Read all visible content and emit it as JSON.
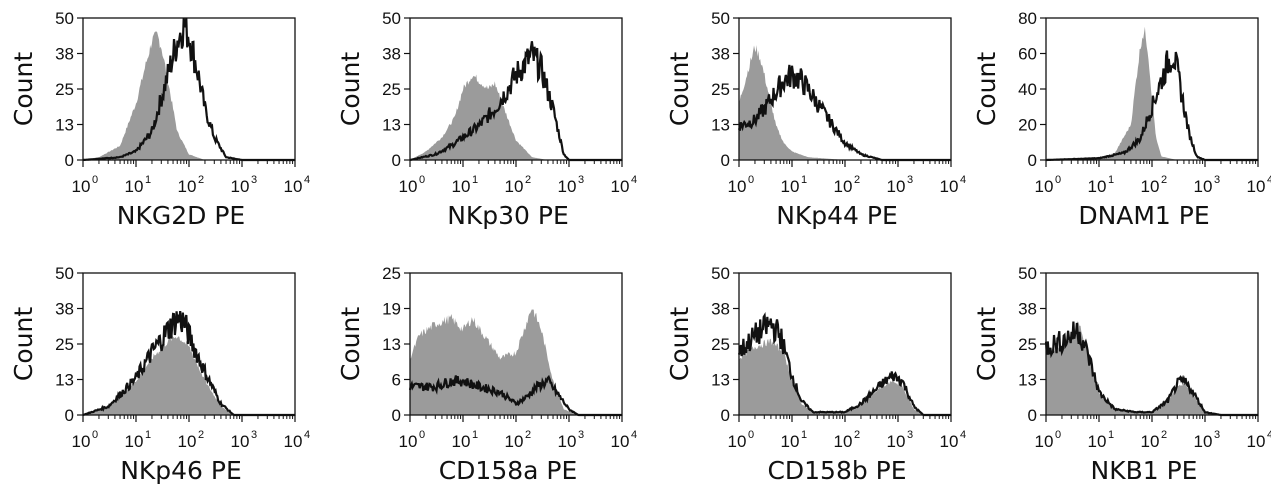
{
  "chart_data": [
    {
      "type": "area",
      "xlabel": "NKG2D PE",
      "ylabel": "Count",
      "xscale": "log",
      "xlim": [
        1,
        10000
      ],
      "xticks": [
        "0",
        "1",
        "2",
        "3",
        "4"
      ],
      "ylim": [
        0,
        50
      ],
      "yticks": [
        "0",
        "13",
        "25",
        "38",
        "50"
      ],
      "series": [
        {
          "style": "filled-gray",
          "x": [
            1,
            2,
            5,
            10,
            15,
            20,
            25,
            30,
            40,
            60,
            100,
            200,
            1000
          ],
          "y": [
            0,
            1,
            5,
            20,
            33,
            42,
            44,
            40,
            28,
            10,
            2,
            0,
            0
          ]
        },
        {
          "style": "black-line",
          "x": [
            1,
            5,
            10,
            20,
            40,
            60,
            80,
            100,
            150,
            200,
            300,
            500,
            1000
          ],
          "y": [
            0,
            1,
            3,
            10,
            30,
            42,
            48,
            44,
            30,
            18,
            8,
            1,
            0
          ]
        }
      ]
    },
    {
      "type": "area",
      "xlabel": "NKp30 PE",
      "ylabel": "Count",
      "xscale": "log",
      "xlim": [
        1,
        10000
      ],
      "xticks": [
        "0",
        "1",
        "2",
        "3",
        "4"
      ],
      "ylim": [
        0,
        50
      ],
      "yticks": [
        "0",
        "13",
        "25",
        "38",
        "50"
      ],
      "series": [
        {
          "style": "filled-gray",
          "x": [
            1,
            2,
            4,
            7,
            10,
            15,
            20,
            30,
            40,
            60,
            100,
            200,
            400,
            1000
          ],
          "y": [
            0,
            3,
            8,
            15,
            25,
            30,
            28,
            25,
            27,
            18,
            7,
            1,
            0,
            0
          ]
        },
        {
          "style": "black-line",
          "x": [
            1,
            3,
            6,
            10,
            20,
            40,
            70,
            100,
            200,
            300,
            500,
            800,
            1000
          ],
          "y": [
            0,
            2,
            5,
            8,
            12,
            18,
            25,
            30,
            37,
            32,
            18,
            2,
            0
          ]
        }
      ]
    },
    {
      "type": "area",
      "xlabel": "NKp44 PE",
      "ylabel": "Count",
      "xscale": "log",
      "xlim": [
        1,
        10000
      ],
      "xticks": [
        "0",
        "1",
        "2",
        "3",
        "4"
      ],
      "ylim": [
        0,
        50
      ],
      "yticks": [
        "0",
        "13",
        "25",
        "38",
        "50"
      ],
      "series": [
        {
          "style": "filled-gray",
          "x": [
            1,
            1.5,
            2,
            2.5,
            3,
            4,
            5,
            7,
            10,
            20,
            100,
            1000
          ],
          "y": [
            20,
            32,
            40,
            36,
            30,
            20,
            12,
            6,
            3,
            1,
            0,
            0
          ]
        },
        {
          "style": "black-line",
          "x": [
            1,
            2,
            3,
            5,
            7,
            10,
            15,
            20,
            30,
            50,
            100,
            200,
            500,
            1000
          ],
          "y": [
            12,
            14,
            18,
            24,
            28,
            30,
            28,
            25,
            20,
            14,
            6,
            2,
            0,
            0
          ]
        }
      ]
    },
    {
      "type": "area",
      "xlabel": "DNAM1 PE",
      "ylabel": "Count",
      "xscale": "log",
      "xlim": [
        1,
        10000
      ],
      "xticks": [
        "0",
        "1",
        "2",
        "3",
        "4"
      ],
      "ylim": [
        0,
        80
      ],
      "yticks": [
        "0",
        "20",
        "40",
        "60",
        "80"
      ],
      "series": [
        {
          "style": "filled-gray",
          "x": [
            1,
            10,
            20,
            40,
            55,
            65,
            75,
            85,
            100,
            120,
            150,
            300
          ],
          "y": [
            0,
            1,
            4,
            20,
            55,
            70,
            72,
            60,
            35,
            12,
            2,
            0
          ]
        },
        {
          "style": "black-line",
          "x": [
            1,
            10,
            30,
            60,
            100,
            150,
            200,
            250,
            300,
            400,
            500,
            700,
            1000
          ],
          "y": [
            0,
            1,
            4,
            12,
            30,
            45,
            55,
            60,
            50,
            30,
            15,
            2,
            0
          ]
        }
      ]
    },
    {
      "type": "area",
      "xlabel": "NKp46 PE",
      "ylabel": "Count",
      "xscale": "log",
      "xlim": [
        1,
        10000
      ],
      "xticks": [
        "0",
        "1",
        "2",
        "3",
        "4"
      ],
      "ylim": [
        0,
        50
      ],
      "yticks": [
        "0",
        "13",
        "25",
        "38",
        "50"
      ],
      "series": [
        {
          "style": "filled-gray",
          "x": [
            1,
            3,
            10,
            20,
            40,
            60,
            100,
            200,
            400,
            700,
            1000
          ],
          "y": [
            0,
            3,
            12,
            20,
            26,
            28,
            24,
            12,
            3,
            0,
            0
          ]
        },
        {
          "style": "black-line",
          "x": [
            1,
            3,
            10,
            20,
            40,
            60,
            80,
            100,
            200,
            400,
            700,
            1000
          ],
          "y": [
            0,
            3,
            13,
            22,
            30,
            34,
            33,
            28,
            15,
            4,
            0,
            0
          ]
        }
      ]
    },
    {
      "type": "area",
      "xlabel": "CD158a PE",
      "ylabel": "Count",
      "xscale": "log",
      "xlim": [
        1,
        10000
      ],
      "xticks": [
        "0",
        "1",
        "2",
        "3",
        "4"
      ],
      "ylim": [
        0,
        25
      ],
      "yticks": [
        "0",
        "6",
        "13",
        "19",
        "25"
      ],
      "series": [
        {
          "style": "filled-gray",
          "x": [
            1,
            1.5,
            3,
            6,
            10,
            15,
            25,
            50,
            100,
            200,
            300,
            500,
            800,
            1500
          ],
          "y": [
            10,
            14,
            16,
            17,
            15,
            17,
            14,
            10,
            11,
            19,
            15,
            6,
            1,
            0
          ]
        },
        {
          "style": "black-line",
          "x": [
            1,
            3,
            6,
            10,
            20,
            50,
            100,
            150,
            250,
            400,
            700,
            1000,
            1500
          ],
          "y": [
            5,
            5,
            6,
            6,
            5,
            4,
            2,
            3,
            5,
            6,
            3,
            1,
            0
          ]
        }
      ]
    },
    {
      "type": "area",
      "xlabel": "CD158b PE",
      "ylabel": "Count",
      "xscale": "log",
      "xlim": [
        1,
        10000
      ],
      "xticks": [
        "0",
        "1",
        "2",
        "3",
        "4"
      ],
      "ylim": [
        0,
        50
      ],
      "yticks": [
        "0",
        "13",
        "25",
        "38",
        "50"
      ],
      "series": [
        {
          "style": "filled-gray",
          "x": [
            1,
            2,
            4,
            7,
            10,
            15,
            25,
            50,
            100,
            200,
            500,
            800,
            1200,
            2000,
            3000
          ],
          "y": [
            20,
            24,
            26,
            22,
            12,
            4,
            1,
            1,
            1,
            4,
            10,
            12,
            10,
            2,
            0
          ]
        },
        {
          "style": "black-line",
          "x": [
            1,
            2,
            4,
            6,
            10,
            15,
            25,
            50,
            100,
            200,
            500,
            800,
            1200,
            2000,
            3000
          ],
          "y": [
            22,
            28,
            32,
            28,
            14,
            5,
            1,
            1,
            1,
            4,
            11,
            14,
            12,
            3,
            0
          ]
        }
      ]
    },
    {
      "type": "area",
      "xlabel": "NKB1 PE",
      "ylabel": "Count",
      "xscale": "log",
      "xlim": [
        1,
        10000
      ],
      "xticks": [
        "0",
        "1",
        "2",
        "3",
        "4"
      ],
      "ylim": [
        0,
        50
      ],
      "yticks": [
        "0",
        "13",
        "25",
        "38",
        "50"
      ],
      "series": [
        {
          "style": "filled-gray",
          "x": [
            1,
            2,
            3,
            4,
            5,
            7,
            10,
            20,
            50,
            100,
            200,
            300,
            400,
            600,
            1000,
            2000
          ],
          "y": [
            22,
            24,
            28,
            32,
            28,
            18,
            8,
            2,
            1,
            1,
            5,
            10,
            11,
            7,
            1,
            0
          ]
        },
        {
          "style": "black-line",
          "x": [
            1,
            2,
            3,
            4,
            5,
            7,
            10,
            20,
            50,
            100,
            200,
            300,
            400,
            600,
            1000,
            2000
          ],
          "y": [
            24,
            26,
            28,
            30,
            26,
            18,
            8,
            2,
            1,
            1,
            5,
            11,
            12,
            8,
            1,
            0
          ]
        }
      ]
    }
  ]
}
